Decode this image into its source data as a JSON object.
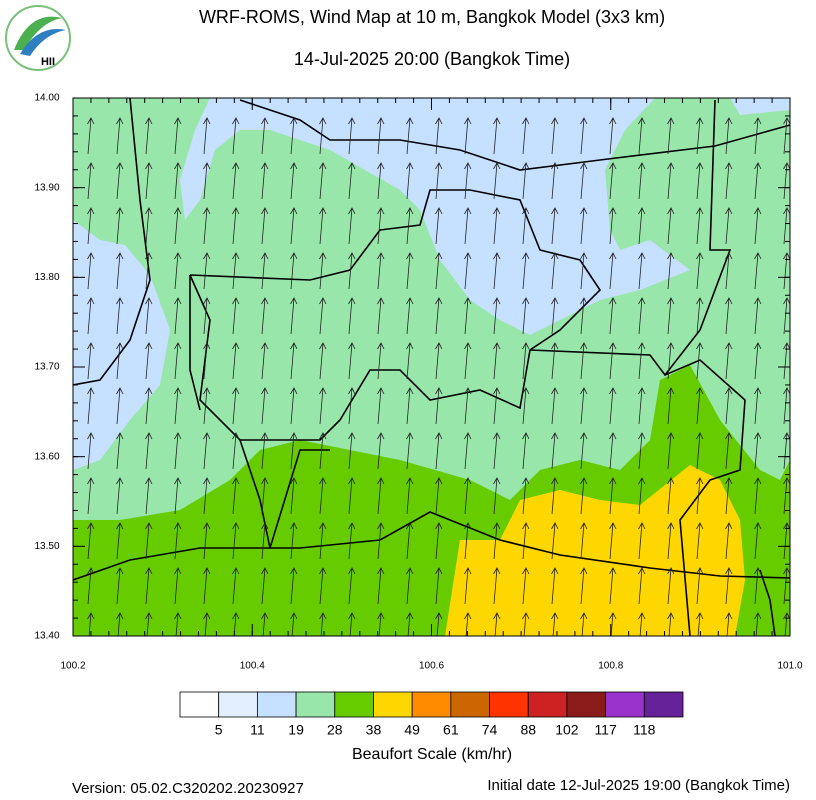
{
  "header": {
    "title": "WRF-ROMS, Wind Map at 10 m, Bangkok Model (3x3 km)",
    "subtitle": "14-Jul-2025 20:00 (Bangkok Time)",
    "logo_text": "HII"
  },
  "map": {
    "xlim": [
      100.2,
      101.0
    ],
    "ylim": [
      13.4,
      14.0
    ],
    "xticks": [
      100.2,
      100.4,
      100.6,
      100.8,
      {
        "value": 101.0,
        "label": "101.0"
      }
    ],
    "yticks": [
      {
        "value": 13.4,
        "label": "13.40"
      },
      {
        "value": 13.5,
        "label": "13.50"
      },
      {
        "value": 13.6,
        "label": "13.60"
      },
      {
        "value": 13.7,
        "label": "13.70"
      },
      {
        "value": 13.8,
        "label": "13.80"
      },
      {
        "value": 13.9,
        "label": "13.90"
      },
      {
        "value": 14.0,
        "label": "14.00"
      }
    ]
  },
  "colorbar": {
    "colors": [
      "#ffffff",
      "#e1efff",
      "#c6e0ff",
      "#99e6aa",
      "#66cc00",
      "#ffd700",
      "#ff8c00",
      "#cc6600",
      "#ff3300",
      "#cc2222",
      "#8b1a1a",
      "#9933cc",
      "#662299"
    ],
    "labels": [
      5,
      11,
      19,
      28,
      38,
      49,
      61,
      74,
      88,
      102,
      117,
      118
    ],
    "title": "Beaufort Scale (km/hr)"
  },
  "footer": {
    "version": "Version: 05.02.C320202.20230927",
    "initial_date": "Initial date 12-Jul-2025 19:00 (Bangkok Time)"
  }
}
